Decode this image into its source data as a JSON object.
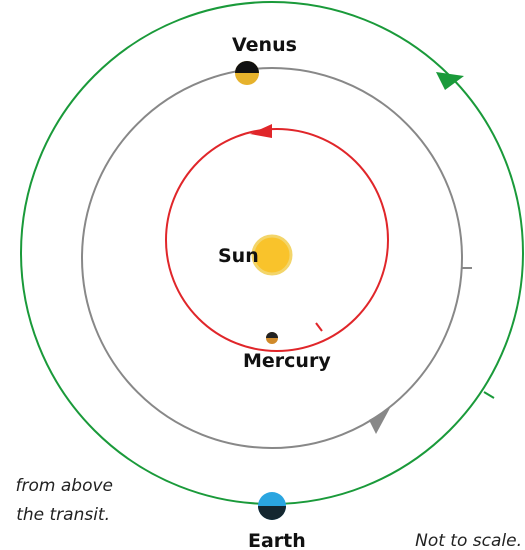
{
  "labels": {
    "venus": "Venus",
    "sun": "Sun",
    "mercury": "Mercury",
    "earth": "Earth"
  },
  "notes": [
    "from above",
    "the transit."
  ],
  "scale_note": "Not to scale."
}
